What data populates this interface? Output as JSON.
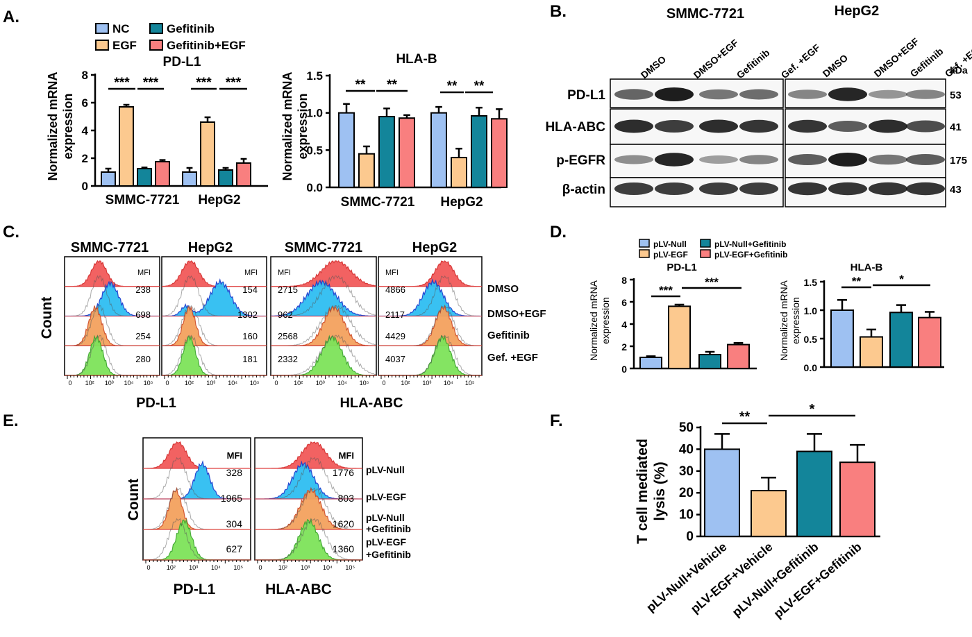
{
  "figure": {
    "panel_letters": [
      "A.",
      "B.",
      "C.",
      "D.",
      "E.",
      "F."
    ],
    "colors": {
      "nc": "#9ec1f2",
      "egf": "#fcc98f",
      "gef": "#13859a",
      "gefegf": "#f97f7f",
      "red_hist": "#f25a5a",
      "blue_hist": "#2fbef2",
      "orange_hist": "#f4a25e",
      "green_hist": "#7ee35a"
    }
  },
  "panelA": {
    "legend": [
      "NC",
      "EGF",
      "Gefitinib",
      "Gefitinib+EGF"
    ],
    "ylabel_lines": [
      "Normalized mRNA",
      "expression"
    ],
    "groups": [
      "SMMC-7721",
      "HepG2"
    ],
    "charts": [
      {
        "title": "PD-L1",
        "yticks": [
          "0",
          "2",
          "4",
          "6",
          "8"
        ],
        "ylim": [
          0,
          8
        ],
        "values": [
          [
            1.0,
            5.7,
            1.25,
            1.75
          ],
          [
            1.0,
            4.6,
            1.15,
            1.65
          ]
        ],
        "errors": [
          [
            0.25,
            0.15,
            0.08,
            0.12
          ],
          [
            0.3,
            0.35,
            0.15,
            0.3
          ]
        ],
        "sig_labels": [
          "***",
          "***",
          "***",
          "***"
        ]
      },
      {
        "title": "HLA-B",
        "yticks": [
          "0.0",
          "0.5",
          "1.0",
          "1.5"
        ],
        "ylim": [
          0,
          1.5
        ],
        "values": [
          [
            1.0,
            0.45,
            0.95,
            0.93
          ],
          [
            1.0,
            0.4,
            0.96,
            0.92
          ]
        ],
        "errors": [
          [
            0.12,
            0.1,
            0.11,
            0.04
          ],
          [
            0.08,
            0.12,
            0.11,
            0.13
          ]
        ],
        "sig_labels": [
          "**",
          "**",
          "**",
          "**"
        ]
      }
    ]
  },
  "panelB": {
    "cell_lines": [
      "SMMC-7721",
      "HepG2"
    ],
    "lanes": [
      "DMSO",
      "DMSO+EGF",
      "Gefitinib",
      "Gef. +EGF"
    ],
    "kda_header": "kDa",
    "proteins": [
      "PD-L1",
      "HLA-ABC",
      "p-EGFR",
      "β-actin"
    ],
    "kda": [
      "53",
      "41",
      "175",
      "43"
    ]
  },
  "panelC": {
    "titles": [
      "SMMC-7721",
      "HepG2",
      "SMMC-7721",
      "HepG2"
    ],
    "mfi_label": "MFI",
    "mfi": [
      [
        "238",
        "698",
        "254",
        "280"
      ],
      [
        "154",
        "1302",
        "160",
        "181"
      ],
      [
        "2715",
        "962",
        "2568",
        "2332"
      ],
      [
        "4866",
        "2117",
        "4429",
        "4037"
      ]
    ],
    "row_labels": [
      "DMSO",
      "DMSO+EGF",
      "Gefitinib",
      "Gef. +EGF"
    ],
    "ylabel": "Count",
    "xlabels": [
      "PD-L1",
      "HLA-ABC"
    ],
    "axis_ticks": [
      "0",
      "10²",
      "10³",
      "10⁴",
      "10⁵"
    ]
  },
  "panelD": {
    "legend": [
      "pLV-Null",
      "pLV-EGF",
      "pLV-Null+Gefitinib",
      "pLV-EGF+Gefitinib"
    ],
    "ylabel_lines": [
      "Normalized mRNA",
      "expression"
    ],
    "charts": [
      {
        "title": "PD-L1",
        "yticks": [
          "0",
          "2",
          "4",
          "6",
          "8"
        ],
        "ylim": [
          0,
          8
        ],
        "values": [
          1.0,
          5.6,
          1.25,
          2.15
        ],
        "errors": [
          0.1,
          0.15,
          0.25,
          0.15
        ],
        "sig_labels": [
          "***",
          "***"
        ]
      },
      {
        "title": "HLA-B",
        "yticks": [
          "0.0",
          "0.5",
          "1.0",
          "1.5"
        ],
        "ylim": [
          0,
          1.5
        ],
        "values": [
          1.0,
          0.53,
          0.96,
          0.87
        ],
        "errors": [
          0.18,
          0.13,
          0.13,
          0.1
        ],
        "sig_labels": [
          "**",
          "*"
        ]
      }
    ]
  },
  "panelE": {
    "mfi_label": "MFI",
    "mfi": [
      [
        "328",
        "1965",
        "304",
        "627"
      ],
      [
        "1776",
        "803",
        "1620",
        "1360"
      ]
    ],
    "row_labels": [
      [
        "pLV-Null"
      ],
      [
        "pLV-EGF"
      ],
      [
        "pLV-Null",
        "+Gefitinib"
      ],
      [
        "pLV-EGF",
        "+Gefitinib"
      ]
    ],
    "ylabel": "Count",
    "xlabels": [
      "PD-L1",
      "HLA-ABC"
    ],
    "axis_ticks": [
      "0",
      "10²",
      "10³",
      "10⁴",
      "10⁵"
    ]
  },
  "panelF": {
    "ylabel_lines": [
      "T cell mediated",
      "lysis (%)"
    ],
    "yticks": [
      "0",
      "10",
      "20",
      "30",
      "40",
      "50"
    ],
    "ylim": [
      0,
      50
    ],
    "categories": [
      "pLV-Null+Vehicle",
      "pLV-EGF+Vehicle",
      "pLV-Null+Gefitinib",
      "pLV-EGF+Gefitinib"
    ],
    "values": [
      40,
      21,
      39,
      34
    ],
    "errors": [
      7,
      6,
      8,
      8
    ],
    "sig_labels": [
      "**",
      "*"
    ]
  },
  "chart_data": [
    {
      "type": "bar",
      "title": "PD-L1",
      "categories": [
        "SMMC-7721",
        "HepG2"
      ],
      "ylabel": "Normalized mRNA expression",
      "ylim": [
        0,
        8
      ],
      "series": [
        {
          "name": "NC",
          "values": [
            1.0,
            1.0
          ]
        },
        {
          "name": "EGF",
          "values": [
            5.7,
            4.6
          ]
        },
        {
          "name": "Gefitinib",
          "values": [
            1.25,
            1.15
          ]
        },
        {
          "name": "Gefitinib+EGF",
          "values": [
            1.75,
            1.65
          ]
        }
      ]
    },
    {
      "type": "bar",
      "title": "HLA-B",
      "categories": [
        "SMMC-7721",
        "HepG2"
      ],
      "ylabel": "Normalized mRNA expression",
      "ylim": [
        0,
        1.5
      ],
      "series": [
        {
          "name": "NC",
          "values": [
            1.0,
            1.0
          ]
        },
        {
          "name": "EGF",
          "values": [
            0.45,
            0.4
          ]
        },
        {
          "name": "Gefitinib",
          "values": [
            0.95,
            0.96
          ]
        },
        {
          "name": "Gefitinib+EGF",
          "values": [
            0.93,
            0.92
          ]
        }
      ]
    },
    {
      "type": "bar",
      "title": "PD-L1",
      "categories": [
        "pLV-Null",
        "pLV-EGF",
        "pLV-Null+Gefitinib",
        "pLV-EGF+Gefitinib"
      ],
      "ylabel": "Normalized mRNA expression",
      "ylim": [
        0,
        8
      ],
      "values": [
        1.0,
        5.6,
        1.25,
        2.15
      ]
    },
    {
      "type": "bar",
      "title": "HLA-B",
      "categories": [
        "pLV-Null",
        "pLV-EGF",
        "pLV-Null+Gefitinib",
        "pLV-EGF+Gefitinib"
      ],
      "ylabel": "Normalized mRNA expression",
      "ylim": [
        0,
        1.5
      ],
      "values": [
        1.0,
        0.53,
        0.96,
        0.87
      ]
    },
    {
      "type": "bar",
      "categories": [
        "pLV-Null+Vehicle",
        "pLV-EGF+Vehicle",
        "pLV-Null+Gefitinib",
        "pLV-EGF+Gefitinib"
      ],
      "ylabel": "T cell mediated lysis (%)",
      "ylim": [
        0,
        50
      ],
      "values": [
        40,
        21,
        39,
        34
      ]
    }
  ]
}
